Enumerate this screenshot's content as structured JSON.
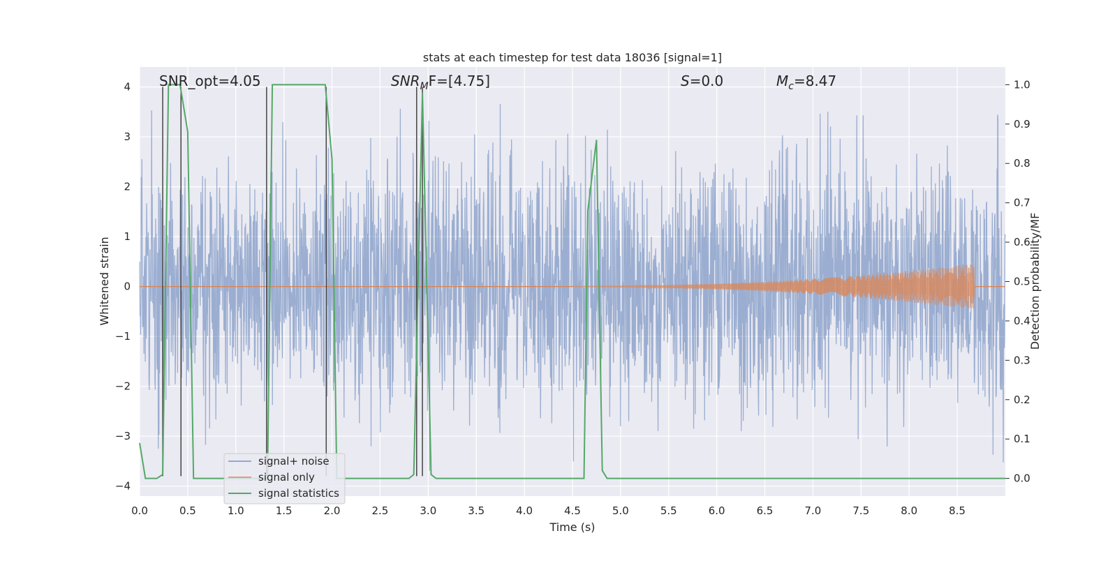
{
  "chart_data": {
    "type": "line",
    "title": "stats at each timestep for test data 18036 [signal=1]",
    "xlabel": "Time (s)",
    "ylabel_left": "Whitened strain",
    "ylabel_right": "Detection probability/MF",
    "xlim": [
      0,
      9.0
    ],
    "ylim_left": [
      -4.2,
      4.4
    ],
    "ylim_right": [
      -0.045,
      1.045
    ],
    "x_ticks": [
      "0.0",
      "0.5",
      "1.0",
      "1.5",
      "2.0",
      "2.5",
      "3.0",
      "3.5",
      "4.0",
      "4.5",
      "5.0",
      "5.5",
      "6.0",
      "6.5",
      "7.0",
      "7.5",
      "8.0",
      "8.5"
    ],
    "x_tick_values": [
      0,
      0.5,
      1.0,
      1.5,
      2.0,
      2.5,
      3.0,
      3.5,
      4.0,
      4.5,
      5.0,
      5.5,
      6.0,
      6.5,
      7.0,
      7.5,
      8.0,
      8.5
    ],
    "y_ticks_left": [
      "4",
      "3",
      "2",
      "1",
      "0",
      "−1",
      "−2",
      "−3",
      "−4"
    ],
    "y_tick_values_left": [
      4,
      3,
      2,
      1,
      0,
      -1,
      -2,
      -3,
      -4
    ],
    "y_ticks_right": [
      "1.0",
      "0.9",
      "0.8",
      "0.7",
      "0.6",
      "0.5",
      "0.4",
      "0.3",
      "0.2",
      "0.1",
      "0.0"
    ],
    "y_tick_values_right": [
      1.0,
      0.9,
      0.8,
      0.7,
      0.6,
      0.5,
      0.4,
      0.3,
      0.2,
      0.1,
      0.0
    ],
    "grid": true,
    "legend_placement": "lower-left",
    "annotations": {
      "snr_opt": "SNR_opt=4.05",
      "snr_mf_main": "SNR",
      "snr_mf_sub": "M",
      "snr_mf_rest": "F=[4.75]",
      "s_main": "S",
      "s_rest": "=0.0",
      "mc_main": "M",
      "mc_sub": "c",
      "mc_rest": "=8.47"
    },
    "series": [
      {
        "name": "signal+ noise",
        "color": "#4c72b0",
        "axis": "left",
        "description_level": "whitened noise, envelope about ±2.2 with spikes to ±3.8",
        "envelope_abs": 2.2,
        "spike_max_abs": 3.8
      },
      {
        "name": "signal only",
        "color": "#dd8452",
        "axis": "left",
        "chirp_start": 4.5,
        "chirp_end": 8.68,
        "chirp_peak_amplitude": 0.45
      },
      {
        "name": "signal statistics",
        "color": "#55a868",
        "axis": "right",
        "x": [
          0.0,
          0.06,
          0.18,
          0.24,
          0.3,
          0.42,
          0.5,
          0.56,
          0.8,
          1.0,
          1.25,
          1.33,
          1.38,
          1.93,
          2.0,
          2.05,
          2.8,
          2.85,
          2.94,
          3.03,
          3.08,
          4.55,
          4.62,
          4.66,
          4.75,
          4.81,
          4.86,
          9.0
        ],
        "y": [
          0.09,
          0.0,
          0.0,
          0.01,
          1.0,
          1.0,
          0.88,
          0.0,
          0.0,
          0.0,
          0.0,
          0.0,
          1.0,
          1.0,
          0.81,
          0.0,
          0.0,
          0.01,
          0.98,
          0.01,
          0.0,
          0.0,
          0.0,
          0.68,
          0.86,
          0.02,
          0.0,
          0.0
        ]
      }
    ],
    "vertical_markers": {
      "color": "#444444",
      "x": [
        0.24,
        0.43,
        1.32,
        1.94,
        2.88,
        2.94
      ],
      "y_range": [
        -3.8,
        4.0
      ]
    }
  }
}
